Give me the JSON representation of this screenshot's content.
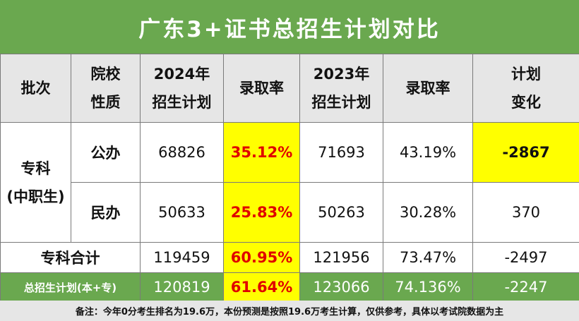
{
  "title": "广东3+证书总招生计划对比",
  "header": {
    "batch": "批次",
    "school_type_1": "院校",
    "school_type_2": "性质",
    "plan2024_1": "2024年",
    "plan2024_2": "招生计划",
    "rate2024": "录取率",
    "plan2023_1": "2023年",
    "plan2023_2": "招生计划",
    "rate2023": "录取率",
    "change_1": "计划",
    "change_2": "变化"
  },
  "batch": {
    "line1": "专科",
    "line2": "(中职生)"
  },
  "rows": [
    {
      "type": "公办",
      "plan2024": "68826",
      "rate2024": "35.12%",
      "plan2023": "71693",
      "rate2023": "43.19%",
      "change": "-2867"
    },
    {
      "type": "民办",
      "plan2024": "50633",
      "rate2024": "25.83%",
      "plan2023": "50263",
      "rate2023": "30.28%",
      "change": "370"
    }
  ],
  "subtotal": {
    "label": "专科合计",
    "plan2024": "119459",
    "rate2024": "60.95%",
    "plan2023": "121956",
    "rate2023": "73.47%",
    "change": "-2497"
  },
  "total": {
    "label": "总招生计划(本+专)",
    "plan2024": "120819",
    "rate2024": "61.64%",
    "plan2023": "123066",
    "rate2023": "74.136%",
    "change": "-2247"
  },
  "note": "备注：今年0分考生排名为19.6万，本份预测是按照19.6万考生计算，仅供参考，具体以考试院数据为主",
  "colors": {
    "header_green": "#6aa84f",
    "highlight_yellow": "#ffff00",
    "highlight_red": "#e00000",
    "header_gray": "#e6e6e6"
  }
}
